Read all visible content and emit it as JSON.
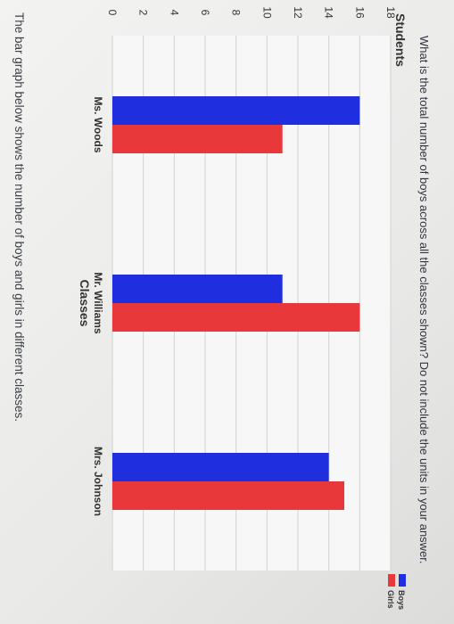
{
  "prompt": "The bar graph below shows the number of boys and girls in different classes.",
  "question": "What is the total number of boys across all the classes shown? Do not include the units in your answer.",
  "chart_data": {
    "type": "bar",
    "title": "",
    "xlabel": "Classes",
    "ylabel": "Students",
    "categories": [
      "Ms. Woods",
      "Mr. Williams",
      "Mrs. Johnson"
    ],
    "series": [
      {
        "name": "Boys",
        "color": "#1f2fe0",
        "values": [
          16,
          11,
          14
        ]
      },
      {
        "name": "Girls",
        "color": "#e8383a",
        "values": [
          11,
          16,
          15
        ]
      }
    ],
    "ylim": [
      0,
      18
    ],
    "yticks": [
      0,
      2,
      4,
      6,
      8,
      10,
      12,
      14,
      16,
      18
    ],
    "grid": true,
    "legend_position": "top-right"
  }
}
